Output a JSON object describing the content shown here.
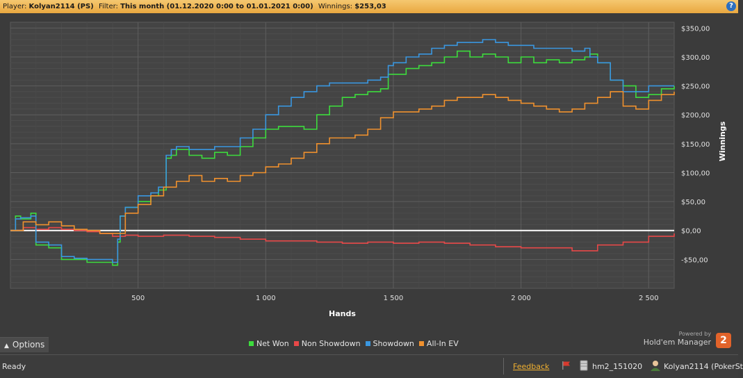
{
  "header": {
    "player_label": "Player:",
    "player_value": "Kolyan2114 (PS)",
    "filter_label": "Filter:",
    "filter_value": "This month (01.12.2020 0:00 to 01.01.2021 0:00)",
    "winnings_label": "Winnings:",
    "winnings_value": "$253,03",
    "help_icon": "question-icon"
  },
  "chart_data": {
    "type": "line",
    "xlabel": "Hands",
    "ylabel": "Winnings",
    "xlim": [
      0,
      2600
    ],
    "ylim": [
      -100,
      360
    ],
    "x_ticks": [
      500,
      1000,
      1500,
      2000,
      2500
    ],
    "x_tick_labels": [
      "500",
      "1 000",
      "1 500",
      "2 000",
      "2 500"
    ],
    "y_ticks": [
      -50,
      0,
      50,
      100,
      150,
      200,
      250,
      300,
      350
    ],
    "y_tick_labels": [
      "-$50,00",
      "$0,00",
      "$50,00",
      "$100,00",
      "$150,00",
      "$200,00",
      "$250,00",
      "$300,00",
      "$350,00"
    ],
    "grid": true,
    "legend_position": "bottom",
    "series": [
      {
        "name": "Net Won",
        "color": "#3ddc3d",
        "x": [
          0,
          20,
          40,
          80,
          100,
          150,
          200,
          250,
          300,
          350,
          400,
          420,
          430,
          450,
          500,
          550,
          580,
          610,
          630,
          650,
          700,
          750,
          800,
          850,
          900,
          950,
          1000,
          1050,
          1100,
          1150,
          1200,
          1250,
          1300,
          1350,
          1400,
          1450,
          1480,
          1500,
          1550,
          1600,
          1650,
          1700,
          1750,
          1800,
          1850,
          1900,
          1950,
          2000,
          2050,
          2100,
          2150,
          2200,
          2250,
          2270,
          2300,
          2350,
          2400,
          2450,
          2500,
          2550,
          2600
        ],
        "y": [
          0,
          25,
          20,
          30,
          -25,
          -30,
          -50,
          -50,
          -55,
          -55,
          -60,
          -20,
          25,
          40,
          50,
          60,
          70,
          125,
          130,
          140,
          130,
          125,
          135,
          130,
          145,
          160,
          175,
          180,
          180,
          175,
          200,
          215,
          230,
          235,
          240,
          245,
          270,
          270,
          280,
          285,
          290,
          300,
          310,
          300,
          305,
          300,
          290,
          300,
          290,
          295,
          290,
          295,
          300,
          305,
          290,
          260,
          250,
          230,
          235,
          245,
          250
        ]
      },
      {
        "name": "Non Showdown",
        "color": "#e84848",
        "x": [
          0,
          50,
          100,
          150,
          200,
          250,
          300,
          350,
          400,
          450,
          500,
          600,
          700,
          800,
          900,
          1000,
          1100,
          1200,
          1300,
          1400,
          1500,
          1600,
          1700,
          1800,
          1900,
          2000,
          2100,
          2200,
          2300,
          2400,
          2500,
          2600
        ],
        "y": [
          0,
          5,
          2,
          5,
          2,
          0,
          -2,
          -5,
          -10,
          -8,
          -10,
          -8,
          -10,
          -12,
          -15,
          -18,
          -18,
          -20,
          -22,
          -20,
          -22,
          -20,
          -22,
          -25,
          -28,
          -30,
          -30,
          -35,
          -25,
          -20,
          -10,
          -5
        ]
      },
      {
        "name": "Showdown",
        "color": "#3a97e0",
        "x": [
          0,
          20,
          40,
          80,
          100,
          150,
          200,
          250,
          300,
          350,
          400,
          420,
          430,
          450,
          500,
          550,
          580,
          610,
          630,
          650,
          700,
          750,
          800,
          850,
          900,
          950,
          1000,
          1050,
          1100,
          1150,
          1200,
          1250,
          1300,
          1350,
          1400,
          1450,
          1480,
          1500,
          1550,
          1600,
          1650,
          1700,
          1750,
          1800,
          1850,
          1900,
          1950,
          2000,
          2050,
          2100,
          2150,
          2200,
          2250,
          2270,
          2300,
          2350,
          2400,
          2450,
          2500,
          2550,
          2600
        ],
        "y": [
          0,
          20,
          22,
          25,
          -20,
          -25,
          -45,
          -48,
          -50,
          -50,
          -55,
          -15,
          25,
          40,
          60,
          65,
          75,
          130,
          140,
          145,
          140,
          140,
          145,
          145,
          160,
          175,
          200,
          215,
          230,
          240,
          250,
          255,
          255,
          255,
          260,
          265,
          285,
          290,
          300,
          305,
          315,
          320,
          325,
          325,
          330,
          325,
          320,
          320,
          315,
          315,
          315,
          310,
          315,
          300,
          290,
          260,
          240,
          240,
          250,
          250,
          250
        ]
      },
      {
        "name": "All-In EV",
        "color": "#f0912e",
        "x": [
          0,
          50,
          100,
          150,
          200,
          250,
          300,
          350,
          400,
          450,
          500,
          550,
          600,
          650,
          700,
          750,
          800,
          850,
          900,
          950,
          1000,
          1050,
          1100,
          1150,
          1200,
          1250,
          1300,
          1350,
          1400,
          1450,
          1500,
          1550,
          1600,
          1650,
          1700,
          1750,
          1800,
          1850,
          1900,
          1950,
          2000,
          2050,
          2100,
          2150,
          2200,
          2250,
          2300,
          2350,
          2400,
          2450,
          2500,
          2550,
          2600
        ],
        "y": [
          0,
          15,
          10,
          15,
          8,
          2,
          0,
          -5,
          -5,
          30,
          45,
          60,
          75,
          85,
          95,
          85,
          90,
          85,
          95,
          100,
          110,
          115,
          125,
          135,
          150,
          160,
          160,
          165,
          175,
          195,
          205,
          205,
          210,
          215,
          225,
          230,
          230,
          235,
          230,
          225,
          220,
          215,
          210,
          205,
          210,
          220,
          230,
          240,
          215,
          210,
          225,
          235,
          240
        ]
      }
    ]
  },
  "options": {
    "label": "Options"
  },
  "powered": {
    "small": "Powered by",
    "brand": "Hold'em Manager",
    "logo": "2"
  },
  "status": {
    "ready": "Ready",
    "feedback": "Feedback",
    "db": "hm2_151020",
    "user": "Kolyan2114 (PokerSt"
  }
}
